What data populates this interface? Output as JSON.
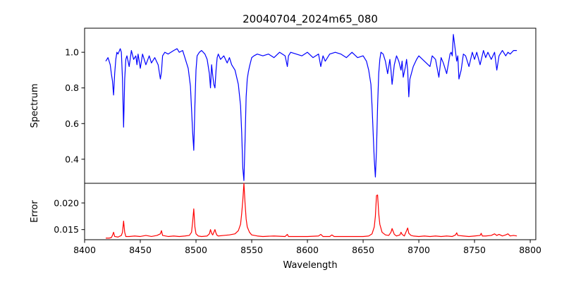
{
  "chart_data": {
    "type": "line",
    "title": "20040704_2024m65_080",
    "xlabel": "Wavelength",
    "x_ticks": [
      8400,
      8450,
      8500,
      8550,
      8600,
      8650,
      8700,
      8750,
      8800
    ],
    "xlim": [
      8400,
      8805
    ],
    "grid": false,
    "panels": [
      {
        "name": "spectrum-panel",
        "ylabel": "Spectrum",
        "ylim": [
          0.265,
          1.135
        ],
        "y_ticks": [
          0.4,
          0.6,
          0.8,
          1.0
        ],
        "y_tick_labels": [
          "0.4",
          "0.6",
          "0.8",
          "1.0"
        ],
        "series": [
          {
            "color": "#0000ff",
            "x": [
              8419,
              8421,
              8423,
              8424,
              8425,
              8426,
              8427,
              8428,
              8429,
              8430,
              8432,
              8433,
              8434,
              8435,
              8436,
              8437,
              8438,
              8440,
              8442,
              8444,
              8446,
              8447,
              8448,
              8450,
              8452,
              8455,
              8458,
              8460,
              8463,
              8466,
              8468,
              8469,
              8470,
              8472,
              8475,
              8480,
              8483,
              8485,
              8488,
              8490,
              8493,
              8495,
              8496,
              8497,
              8498,
              8499,
              8500,
              8501,
              8503,
              8505,
              8508,
              8510,
              8512,
              8513,
              8514,
              8515,
              8516,
              8517,
              8518,
              8519,
              8520,
              8522,
              8525,
              8528,
              8530,
              8532,
              8535,
              8538,
              8540,
              8541,
              8542,
              8543,
              8544,
              8545,
              8546,
              8547,
              8548,
              8550,
              8552,
              8555,
              8560,
              8565,
              8570,
              8575,
              8580,
              8582,
              8583,
              8585,
              8590,
              8595,
              8600,
              8605,
              8610,
              8612,
              8614,
              8616,
              8620,
              8625,
              8630,
              8635,
              8640,
              8645,
              8650,
              8653,
              8655,
              8657,
              8658,
              8659,
              8660,
              8661,
              8662,
              8663,
              8664,
              8665,
              8666,
              8668,
              8670,
              8672,
              8674,
              8675,
              8676,
              8678,
              8680,
              8682,
              8684,
              8685,
              8686,
              8688,
              8689,
              8690,
              8691,
              8692,
              8695,
              8698,
              8700,
              8705,
              8710,
              8712,
              8715,
              8718,
              8720,
              8722,
              8725,
              8728,
              8729,
              8730,
              8731,
              8733,
              8734,
              8735,
              8736,
              8738,
              8740,
              8742,
              8745,
              8748,
              8750,
              8752,
              8755,
              8758,
              8760,
              8762,
              8765,
              8768,
              8770,
              8772,
              8775,
              8778,
              8780,
              8782,
              8785,
              8788
            ],
            "y": [
              0.95,
              0.97,
              0.93,
              0.88,
              0.84,
              0.76,
              0.88,
              0.96,
              1.0,
              0.99,
              1.02,
              1.0,
              0.85,
              0.58,
              0.85,
              0.96,
              0.98,
              0.92,
              1.01,
              0.96,
              0.98,
              0.93,
              0.99,
              0.91,
              0.99,
              0.93,
              0.98,
              0.94,
              0.97,
              0.93,
              0.85,
              0.89,
              0.98,
              1.0,
              0.99,
              1.01,
              1.02,
              1.0,
              1.01,
              0.97,
              0.91,
              0.81,
              0.68,
              0.55,
              0.45,
              0.7,
              0.9,
              0.98,
              1.0,
              1.01,
              0.99,
              0.96,
              0.88,
              0.8,
              0.93,
              0.87,
              0.82,
              0.8,
              0.9,
              0.97,
              0.99,
              0.96,
              0.98,
              0.94,
              0.97,
              0.93,
              0.9,
              0.82,
              0.7,
              0.55,
              0.35,
              0.28,
              0.5,
              0.75,
              0.85,
              0.89,
              0.92,
              0.97,
              0.98,
              0.99,
              0.98,
              0.99,
              0.97,
              1.0,
              0.98,
              0.92,
              0.98,
              1.0,
              0.99,
              0.98,
              1.0,
              0.97,
              0.99,
              0.92,
              0.98,
              0.95,
              0.99,
              1.0,
              0.99,
              0.97,
              1.0,
              0.97,
              0.98,
              0.95,
              0.9,
              0.82,
              0.7,
              0.55,
              0.4,
              0.3,
              0.45,
              0.7,
              0.88,
              0.96,
              1.0,
              0.99,
              0.95,
              0.88,
              0.96,
              0.9,
              0.82,
              0.93,
              0.98,
              0.95,
              0.9,
              0.95,
              0.86,
              0.92,
              0.96,
              0.9,
              0.75,
              0.85,
              0.92,
              0.96,
              0.98,
              0.95,
              0.92,
              0.98,
              0.96,
              0.86,
              0.97,
              0.94,
              0.88,
              0.99,
              1.0,
              0.98,
              1.1,
              1.0,
              0.95,
              0.98,
              0.85,
              0.9,
              0.99,
              0.98,
              0.92,
              1.0,
              0.96,
              1.0,
              0.93,
              1.01,
              0.97,
              1.0,
              0.96,
              1.0,
              0.9,
              0.98,
              1.01,
              0.98,
              1.0,
              0.99,
              1.01,
              1.01
            ]
          }
        ]
      },
      {
        "name": "error-panel",
        "ylabel": "Error",
        "ylim": [
          0.0131,
          0.0237
        ],
        "y_ticks": [
          0.015,
          0.02
        ],
        "y_tick_labels": [
          "0.015",
          "0.020"
        ],
        "series": [
          {
            "color": "#ff0000",
            "x": [
              8419,
              8422,
              8424,
              8425,
              8426,
              8427,
              8430,
              8433,
              8434,
              8435,
              8436,
              8437,
              8440,
              8445,
              8450,
              8455,
              8460,
              8465,
              8468,
              8469,
              8470,
              8475,
              8480,
              8485,
              8490,
              8494,
              8496,
              8497,
              8498,
              8499,
              8500,
              8502,
              8505,
              8510,
              8512,
              8513,
              8514,
              8515,
              8516,
              8517,
              8518,
              8519,
              8520,
              8525,
              8530,
              8535,
              8538,
              8540,
              8541,
              8542,
              8543,
              8544,
              8545,
              8546,
              8548,
              8550,
              8555,
              8560,
              8570,
              8580,
              8582,
              8583,
              8590,
              8600,
              8610,
              8612,
              8614,
              8620,
              8622,
              8624,
              8630,
              8640,
              8650,
              8655,
              8658,
              8660,
              8661,
              8662,
              8663,
              8664,
              8665,
              8667,
              8670,
              8673,
              8675,
              8676,
              8678,
              8680,
              8683,
              8684,
              8685,
              8687,
              8689,
              8690,
              8691,
              8693,
              8695,
              8700,
              8705,
              8710,
              8715,
              8720,
              8725,
              8730,
              8733,
              8734,
              8735,
              8740,
              8745,
              8750,
              8755,
              8756,
              8757,
              8760,
              8765,
              8768,
              8770,
              8772,
              8775,
              8778,
              8780,
              8782,
              8785,
              8788
            ],
            "y": [
              0.0134,
              0.0134,
              0.0135,
              0.0139,
              0.0145,
              0.0137,
              0.0136,
              0.0139,
              0.0145,
              0.0166,
              0.0145,
              0.0137,
              0.0137,
              0.0138,
              0.0137,
              0.0139,
              0.0137,
              0.0139,
              0.0142,
              0.0148,
              0.0139,
              0.0137,
              0.0138,
              0.0137,
              0.0138,
              0.0139,
              0.0145,
              0.0165,
              0.0189,
              0.0155,
              0.0142,
              0.0138,
              0.0137,
              0.0138,
              0.0142,
              0.015,
              0.0143,
              0.014,
              0.0145,
              0.015,
              0.0143,
              0.0139,
              0.0138,
              0.0139,
              0.014,
              0.0142,
              0.0148,
              0.016,
              0.018,
              0.0205,
              0.0237,
              0.02,
              0.017,
              0.0155,
              0.0145,
              0.014,
              0.0138,
              0.0137,
              0.0138,
              0.0137,
              0.0141,
              0.0137,
              0.0137,
              0.0137,
              0.0138,
              0.0141,
              0.0137,
              0.0137,
              0.014,
              0.0137,
              0.0137,
              0.0137,
              0.0137,
              0.0138,
              0.0142,
              0.0155,
              0.0175,
              0.0214,
              0.0215,
              0.018,
              0.016,
              0.0145,
              0.014,
              0.0139,
              0.0145,
              0.0152,
              0.0141,
              0.0138,
              0.014,
              0.0145,
              0.0141,
              0.0138,
              0.0148,
              0.0153,
              0.0143,
              0.0139,
              0.0138,
              0.0137,
              0.0138,
              0.0137,
              0.0138,
              0.0137,
              0.0138,
              0.0137,
              0.014,
              0.0144,
              0.0139,
              0.0138,
              0.0137,
              0.0138,
              0.0139,
              0.0143,
              0.0138,
              0.0138,
              0.0139,
              0.0142,
              0.0139,
              0.0141,
              0.0138,
              0.014,
              0.0142,
              0.0138,
              0.0139,
              0.0138
            ]
          }
        ]
      }
    ]
  }
}
